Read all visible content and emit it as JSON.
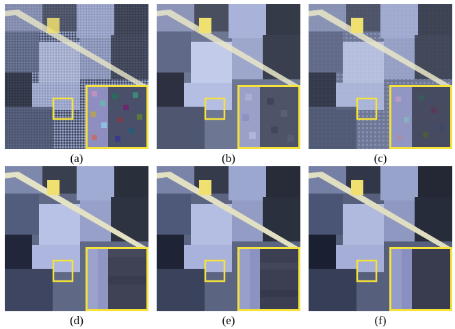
{
  "figure": {
    "panels": [
      {
        "label": "(a)",
        "style": "noisy-strong"
      },
      {
        "label": "(b)",
        "style": "noisy-blur"
      },
      {
        "label": "(c)",
        "style": "noisy-mild"
      },
      {
        "label": "(d)",
        "style": "denoised-1"
      },
      {
        "label": "(e)",
        "style": "denoised-2"
      },
      {
        "label": "(f)",
        "style": "clean"
      }
    ],
    "colors": {
      "highlight_box": "#f5e23a",
      "field_light": "#b9c6ea",
      "field_dark": "#2b2f3a",
      "road": "#e9e6c8"
    }
  }
}
